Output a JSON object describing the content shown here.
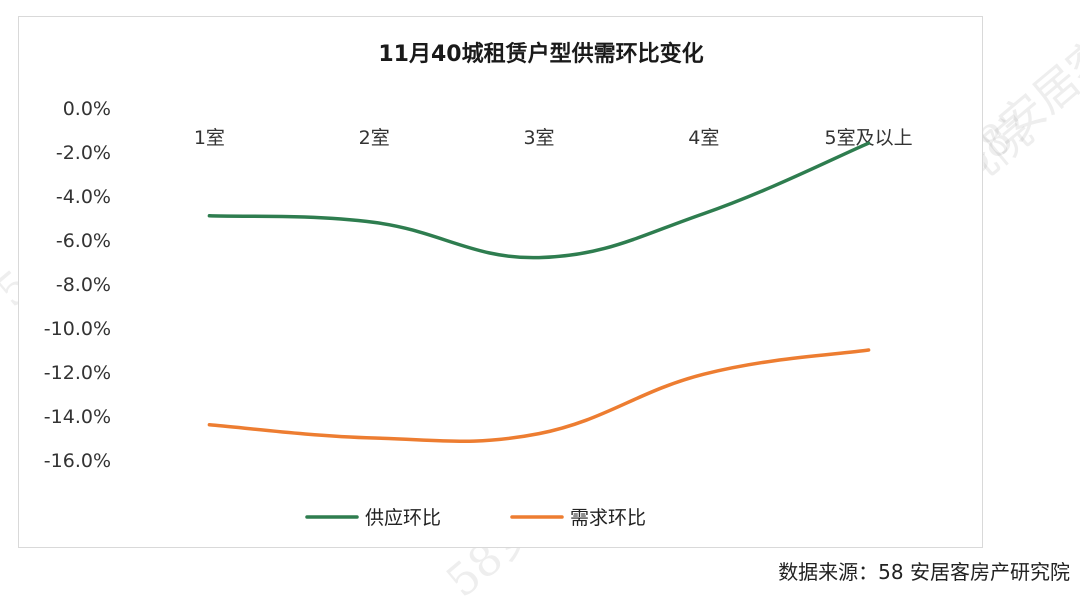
{
  "source_text": "数据来源：58 安居客房产研究院",
  "watermark_text": "58安居客房产研究院",
  "chart_data": {
    "type": "line",
    "title": "11月40城租赁户型供需环比变化",
    "categories": [
      "1室",
      "2室",
      "3室",
      "4室",
      "5室及以上"
    ],
    "y_ticks": [
      "0.0%",
      "-2.0%",
      "-4.0%",
      "-6.0%",
      "-8.0%",
      "-10.0%",
      "-12.0%",
      "-14.0%",
      "-16.0%"
    ],
    "ylim": [
      -16,
      0
    ],
    "grid": false,
    "legend_position": "bottom",
    "series": [
      {
        "name": "供应环比",
        "color": "#2e7d4f",
        "values": [
          -4.9,
          -5.2,
          -6.8,
          -4.8,
          -1.6
        ]
      },
      {
        "name": "需求环比",
        "color": "#ed7d31",
        "values": [
          -14.4,
          -15.0,
          -14.8,
          -12.1,
          -11.0
        ]
      }
    ]
  }
}
